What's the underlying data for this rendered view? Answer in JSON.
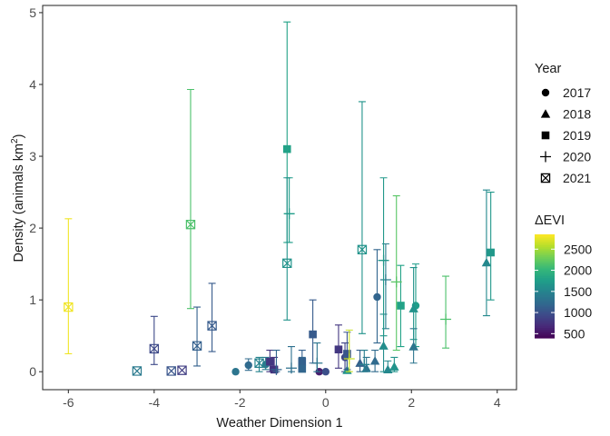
{
  "chart_data": {
    "type": "scatter",
    "title": "",
    "xlabel": "Weather Dimension 1",
    "ylabel_main": "Density (animals km",
    "ylabel_sup": "2",
    "ylabel_end": ")",
    "xlim": [
      -6.6,
      4.45
    ],
    "ylim": [
      -0.25,
      5.1
    ],
    "x_ticks": [
      -6,
      -4,
      -2,
      0,
      2,
      4
    ],
    "y_ticks": [
      0,
      1,
      2,
      3,
      4,
      5
    ],
    "grid": false,
    "shape_legend": {
      "title": "Year",
      "items": [
        {
          "label": "2017",
          "shape": "circle"
        },
        {
          "label": "2018",
          "shape": "triangle"
        },
        {
          "label": "2019",
          "shape": "square"
        },
        {
          "label": "2020",
          "shape": "plus"
        },
        {
          "label": "2021",
          "shape": "boxcross"
        }
      ]
    },
    "color_legend": {
      "title": "ΔEVI",
      "min": 400,
      "max": 2850,
      "ticks": [
        500,
        1000,
        1500,
        2000,
        2500
      ],
      "colormap": [
        "#440154",
        "#482878",
        "#3e4989",
        "#31688e",
        "#26828e",
        "#1f9e89",
        "#35b779",
        "#6ece58",
        "#b5de2b",
        "#fde725"
      ]
    },
    "series": [
      {
        "year": "2017",
        "points": [
          {
            "x": -2.1,
            "y": 0.0,
            "lo": 0.0,
            "hi": 0.0,
            "evi": 1350
          },
          {
            "x": -1.8,
            "y": 0.09,
            "lo": 0.02,
            "hi": 0.18,
            "evi": 1250
          },
          {
            "x": -1.4,
            "y": 0.1,
            "lo": 0.03,
            "hi": 0.2,
            "evi": 1400
          },
          {
            "x": -0.15,
            "y": 0.0,
            "lo": 0.0,
            "hi": 0.0,
            "evi": 600
          },
          {
            "x": 0.0,
            "y": 0.0,
            "lo": 0.0,
            "hi": 0.0,
            "evi": 1000
          },
          {
            "x": 0.45,
            "y": 0.2,
            "lo": 0.0,
            "hi": 0.4,
            "evi": 900
          },
          {
            "x": 1.2,
            "y": 1.04,
            "lo": 0.4,
            "hi": 1.7,
            "evi": 1200
          },
          {
            "x": 2.1,
            "y": 0.92,
            "lo": 0.35,
            "hi": 1.5,
            "evi": 1750
          }
        ]
      },
      {
        "year": "2018",
        "points": [
          {
            "x": 0.5,
            "y": 0.02,
            "lo": 0.0,
            "hi": 0.2,
            "evi": 1650
          },
          {
            "x": 0.8,
            "y": 0.12,
            "lo": 0.0,
            "hi": 0.3,
            "evi": 1150
          },
          {
            "x": 0.95,
            "y": 0.05,
            "lo": 0.0,
            "hi": 0.2,
            "evi": 1350
          },
          {
            "x": 1.15,
            "y": 0.15,
            "lo": 0.0,
            "hi": 0.3,
            "evi": 1250
          },
          {
            "x": 1.35,
            "y": 0.36,
            "lo": 0.0,
            "hi": 0.8,
            "evi": 1600
          },
          {
            "x": 1.45,
            "y": 0.03,
            "lo": 0.0,
            "hi": 0.15,
            "evi": 1550
          },
          {
            "x": 1.6,
            "y": 0.07,
            "lo": 0.0,
            "hi": 0.2,
            "evi": 1650
          },
          {
            "x": 2.05,
            "y": 0.35,
            "lo": 0.12,
            "hi": 0.6,
            "evi": 1350
          },
          {
            "x": 2.05,
            "y": 0.88,
            "lo": 0.45,
            "hi": 1.45,
            "evi": 1650
          },
          {
            "x": 3.75,
            "y": 1.52,
            "lo": 0.78,
            "hi": 2.53,
            "evi": 1550
          }
        ]
      },
      {
        "year": "2019",
        "points": [
          {
            "x": -1.3,
            "y": 0.14,
            "lo": 0.0,
            "hi": 0.3,
            "evi": 800
          },
          {
            "x": -1.2,
            "y": 0.03,
            "lo": 0.0,
            "hi": 0.2,
            "evi": 750
          },
          {
            "x": -0.55,
            "y": 0.14,
            "lo": 0.0,
            "hi": 0.3,
            "evi": 1150
          },
          {
            "x": -0.55,
            "y": 0.04,
            "lo": 0.0,
            "hi": 0.2,
            "evi": 1200
          },
          {
            "x": -0.3,
            "y": 0.52,
            "lo": 0.12,
            "hi": 1.0,
            "evi": 1100
          },
          {
            "x": 0.3,
            "y": 0.31,
            "lo": 0.05,
            "hi": 0.65,
            "evi": 800
          },
          {
            "x": 0.5,
            "y": 0.25,
            "lo": 0.03,
            "hi": 0.55,
            "evi": 1050
          },
          {
            "x": 1.75,
            "y": 0.92,
            "lo": 0.35,
            "hi": 1.48,
            "evi": 1800
          },
          {
            "x": 3.85,
            "y": 1.66,
            "lo": 1.0,
            "hi": 2.5,
            "evi": 1700
          },
          {
            "x": -0.9,
            "y": 3.1,
            "lo": 1.8,
            "hi": 4.87,
            "evi": 1800
          }
        ]
      },
      {
        "year": "2020",
        "points": [
          {
            "x": -1.15,
            "y": 0.03,
            "lo": 0.0,
            "hi": 0.3,
            "evi": 1200
          },
          {
            "x": -0.8,
            "y": 0.05,
            "lo": 0.0,
            "hi": 0.35,
            "evi": 1300
          },
          {
            "x": -0.2,
            "y": 0.12,
            "lo": 0.0,
            "hi": 0.4,
            "evi": 1350
          },
          {
            "x": 0.55,
            "y": 0.18,
            "lo": 0.0,
            "hi": 0.58,
            "evi": 2650
          },
          {
            "x": 0.9,
            "y": 0.1,
            "lo": 0.0,
            "hi": 0.3,
            "evi": 1450
          },
          {
            "x": 1.4,
            "y": 1.28,
            "lo": 0.6,
            "hi": 1.78,
            "evi": 1450
          },
          {
            "x": 1.65,
            "y": 1.25,
            "lo": 0.3,
            "hi": 2.45,
            "evi": 2200
          },
          {
            "x": 2.8,
            "y": 0.73,
            "lo": 0.33,
            "hi": 1.33,
            "evi": 2150
          },
          {
            "x": 1.35,
            "y": 1.55,
            "lo": 0.5,
            "hi": 2.7,
            "evi": 1700
          },
          {
            "x": -0.85,
            "y": 2.2,
            "lo": 1.8,
            "hi": 2.7,
            "evi": 1750
          }
        ]
      },
      {
        "year": "2021",
        "points": [
          {
            "x": -6.0,
            "y": 0.9,
            "lo": 0.25,
            "hi": 2.13,
            "evi": 2800
          },
          {
            "x": -4.0,
            "y": 0.32,
            "lo": 0.1,
            "hi": 0.77,
            "evi": 950
          },
          {
            "x": -4.4,
            "y": 0.01,
            "lo": 0.0,
            "hi": 0.0,
            "evi": 1400
          },
          {
            "x": -3.6,
            "y": 0.01,
            "lo": 0.0,
            "hi": 0.0,
            "evi": 1050
          },
          {
            "x": -3.35,
            "y": 0.02,
            "lo": 0.0,
            "hi": 0.0,
            "evi": 850
          },
          {
            "x": -3.0,
            "y": 0.36,
            "lo": 0.08,
            "hi": 0.9,
            "evi": 1150
          },
          {
            "x": -2.65,
            "y": 0.64,
            "lo": 0.28,
            "hi": 1.23,
            "evi": 1100
          },
          {
            "x": -3.15,
            "y": 2.05,
            "lo": 0.88,
            "hi": 3.93,
            "evi": 2150
          },
          {
            "x": -1.55,
            "y": 0.12,
            "lo": 0.0,
            "hi": 0.2,
            "evi": 1500
          },
          {
            "x": -0.9,
            "y": 1.51,
            "lo": 0.72,
            "hi": 2.7,
            "evi": 1650
          },
          {
            "x": 0.85,
            "y": 1.7,
            "lo": 0.53,
            "hi": 3.76,
            "evi": 1650
          }
        ]
      }
    ]
  }
}
